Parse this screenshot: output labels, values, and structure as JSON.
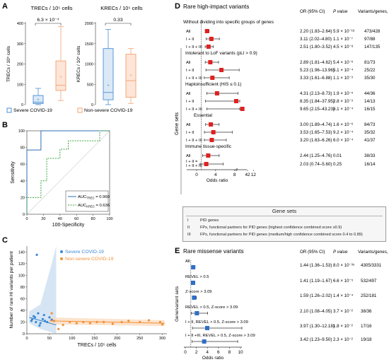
{
  "panels": {
    "A": {
      "letter": "A",
      "left": {
        "title": "TRECs / 10⁵ cells",
        "ylabel": "TRECs / 10⁵ cells",
        "pvalue": "6.3 × 10⁻⁴",
        "ylim": [
          0,
          400
        ],
        "yticks": [
          0,
          100,
          200,
          300,
          400
        ],
        "boxes": [
          {
            "group": "Severe COVID-19",
            "min": 0,
            "q1": 5,
            "median": 12,
            "q3": 45,
            "max": 80,
            "mean": 25
          },
          {
            "group": "Non-severe COVID-19",
            "min": 20,
            "q1": 70,
            "median": 95,
            "q3": 215,
            "max": 385,
            "mean": 135
          }
        ]
      },
      "right": {
        "title": "KRECs / 10⁵ cells",
        "ylabel": "KRECs / 10⁵ cells",
        "pvalue": "0.33",
        "ylim": [
          0,
          2000
        ],
        "yticks": [
          0,
          500,
          1000,
          1500,
          2000
        ],
        "boxes": [
          {
            "group": "Severe COVID-19",
            "min": 0,
            "q1": 120,
            "median": 300,
            "q3": 1380,
            "max": 1850,
            "mean": 480
          },
          {
            "group": "Non-severe COVID-19",
            "min": 30,
            "q1": 180,
            "median": 590,
            "q3": 1240,
            "max": 1380,
            "mean": 720
          }
        ]
      },
      "legend": [
        {
          "label": "Severe COVID-19",
          "color": "#4a8fd1"
        },
        {
          "label": "Non-severe COVID-19",
          "color": "#f2a071"
        }
      ]
    },
    "B": {
      "letter": "B",
      "ylabel": "Sensitivity",
      "xlabel": "100-Specificity",
      "ticks": [
        0,
        20,
        40,
        60,
        80,
        100
      ],
      "legend": [
        {
          "label": "AUC",
          "sub": "TREC",
          "value": "= 0.960",
          "color": "#2c6fb3",
          "style": "solid"
        },
        {
          "label": "AUC",
          "sub": "KREC",
          "value": "= 0.636",
          "color": "#38a53a",
          "style": "dashed"
        }
      ]
    },
    "C": {
      "letter": "C",
      "ylabel": "Number of rare HI variants per patient",
      "xlabel": "TRECs / 10⁵ cells",
      "xticks": [
        0,
        50,
        100,
        150,
        200,
        250,
        300
      ],
      "yticks": [
        0,
        20,
        40,
        60,
        80,
        100,
        120,
        140
      ],
      "legend": [
        {
          "label": "Severe COVID-19",
          "color": "#3b88d4"
        },
        {
          "label": "Non-severe COVID-19",
          "color": "#f29138"
        }
      ]
    },
    "D": {
      "letter": "D",
      "title": "Rare high-impact variants",
      "col_headers": {
        "or": "OR (95% CI)",
        "p": "P value",
        "v": "Variants/genes, #"
      },
      "ylabel": "Gene sets",
      "xlabel": "Odds ratio",
      "xticks": [
        0,
        4,
        8,
        12,
        42
      ],
      "gene_sets_box": {
        "title": "Gene sets",
        "rows": [
          {
            "num": "I",
            "text": "PID genes"
          },
          {
            "num": "II",
            "text": "FPs, functional partners for PID genes (highest confidence combined score ≥0.9)"
          },
          {
            "num": "III",
            "text": "FPs, functional partners for PID genes (medium/high confidence combined score 0.4 to 0.89)"
          }
        ]
      }
    },
    "E": {
      "letter": "E",
      "title": "Rare missense variants",
      "col_headers": {
        "or": "OR (95% CI)",
        "p": "P value",
        "v": "Variants/genes, #"
      },
      "ylabel": "Gene/variant sets",
      "xlabel": "Odds ratio",
      "xticks": [
        0,
        2,
        4,
        6,
        8,
        10
      ]
    }
  },
  "chart_data": [
    {
      "panel": "A-left",
      "type": "box",
      "categories": [
        "Severe COVID-19",
        "Non-severe COVID-19"
      ],
      "ylabel": "TRECs / 10⁵ cells",
      "ylim": [
        0,
        400
      ],
      "annotation": "6.3 × 10⁻⁴"
    },
    {
      "panel": "A-right",
      "type": "box",
      "categories": [
        "Severe COVID-19",
        "Non-severe COVID-19"
      ],
      "ylabel": "KRECs / 10⁵ cells",
      "ylim": [
        0,
        2000
      ],
      "annotation": "0.33"
    },
    {
      "panel": "B",
      "type": "line",
      "xlabel": "100-Specificity",
      "ylabel": "Sensitivity",
      "xlim": [
        0,
        100
      ],
      "ylim": [
        0,
        100
      ],
      "series": [
        {
          "name": "AUC TREC = 0.960",
          "points": [
            [
              0,
              0
            ],
            [
              0,
              77
            ],
            [
              17,
              77
            ],
            [
              17,
              100
            ],
            [
              100,
              100
            ]
          ]
        },
        {
          "name": "AUC KREC = 0.636",
          "points": [
            [
              0,
              0
            ],
            [
              0,
              20
            ],
            [
              17,
              20
            ],
            [
              17,
              40
            ],
            [
              24,
              40
            ],
            [
              24,
              67
            ],
            [
              40,
              67
            ],
            [
              40,
              78
            ],
            [
              50,
              78
            ],
            [
              50,
              88
            ],
            [
              88,
              88
            ],
            [
              88,
              100
            ],
            [
              100,
              100
            ]
          ]
        }
      ]
    },
    {
      "panel": "C",
      "type": "scatter",
      "xlabel": "TRECs / 10⁵ cells",
      "ylabel": "Number of rare HI variants per patient",
      "xlim": [
        0,
        310
      ],
      "ylim": [
        0,
        150
      ],
      "series": [
        {
          "name": "Severe COVID-19",
          "points": [
            [
              10,
              22
            ],
            [
              15,
              30
            ],
            [
              18,
              28
            ],
            [
              22,
              135
            ],
            [
              25,
              35
            ],
            [
              30,
              18
            ],
            [
              35,
              25
            ],
            [
              40,
              22
            ],
            [
              12,
              25
            ],
            [
              45,
              20
            ],
            [
              50,
              28
            ],
            [
              55,
              24
            ],
            [
              60,
              22
            ],
            [
              20,
              20
            ],
            [
              28,
              14
            ],
            [
              38,
              32
            ]
          ],
          "fit": [
            [
              5,
              28
            ],
            [
              65,
              15
            ]
          ]
        },
        {
          "name": "Non-severe COVID-19",
          "points": [
            [
              55,
              35
            ],
            [
              60,
              22
            ],
            [
              70,
              8
            ],
            [
              80,
              15
            ],
            [
              95,
              20
            ],
            [
              110,
              18
            ],
            [
              125,
              20
            ],
            [
              140,
              18
            ],
            [
              155,
              20
            ],
            [
              170,
              20
            ],
            [
              190,
              17
            ],
            [
              210,
              20
            ],
            [
              225,
              22
            ],
            [
              250,
              20
            ],
            [
              270,
              23
            ],
            [
              295,
              20
            ],
            [
              300,
              16
            ]
          ],
          "fit": [
            [
              50,
              22
            ],
            [
              305,
              18
            ]
          ]
        }
      ]
    },
    {
      "panel": "D",
      "type": "forest",
      "xlabel": "Odds ratio",
      "xticks": [
        0,
        4,
        8,
        12,
        42
      ],
      "rows": [
        {
          "kind": "header",
          "label": "Without dividing into specific groups of genes"
        },
        {
          "kind": "row",
          "label": "All",
          "or": 2.2,
          "lo": 1.83,
          "hi": 2.64,
          "text_or": "2.20 (1.83–2.64)",
          "p": "5.9 × 10⁻¹⁸",
          "v": "473/428"
        },
        {
          "kind": "row",
          "label": "I + II",
          "or": 3.11,
          "lo": 2.02,
          "hi": 4.8,
          "text_or": "3.11 (2.02–4.80)",
          "p": "1.1 × 10⁻⁷",
          "v": "97/88"
        },
        {
          "kind": "row",
          "label": "I + II + III",
          "or": 2.51,
          "lo": 1.8,
          "hi": 3.52,
          "text_or": "2.51 (1.80–3.52)",
          "p": "4.5 × 10⁻⁸",
          "v": "147/135"
        },
        {
          "kind": "header",
          "label": "Intolerant to LoF variants (pLI > 0.9)"
        },
        {
          "kind": "row",
          "label": "All",
          "or": 2.89,
          "lo": 1.81,
          "hi": 4.62,
          "text_or": "2.89 (1.81–4.62)",
          "p": "5.4 × 10⁻⁶",
          "v": "81/73"
        },
        {
          "kind": "row",
          "label": "I + II",
          "or": 5.23,
          "lo": 1.96,
          "hi": 13.96,
          "text_or": "5.23 (1.96–13.96)",
          "p": "5.1 × 10⁻⁴",
          "v": "25/22"
        },
        {
          "kind": "row",
          "label": "I + II + III",
          "or": 3.33,
          "lo": 1.61,
          "hi": 6.88,
          "text_or": "3.33 (1.61–6.88)",
          "p": "1.1 × 10⁻³",
          "v": "35/30"
        },
        {
          "kind": "header",
          "label": "Haploinsufficient (HIS ≤ 0.1)"
        },
        {
          "kind": "row",
          "label": "All",
          "or": 4.31,
          "lo": 2.13,
          "hi": 8.73,
          "text_or": "4.31 (2.13–8.73)",
          "p": "1.9 × 10⁻⁵",
          "v": "44/36"
        },
        {
          "kind": "row",
          "label": "I + II",
          "or": 8.35,
          "lo": 1.84,
          "hi": 37.95,
          "text_or": "8.35 (1.84–37.95)",
          "p": "2.8 × 10⁻³",
          "v": "14/13"
        },
        {
          "kind": "row",
          "label": "I + II + III",
          "or": 9.65,
          "lo": 2.15,
          "hi": 43.23,
          "text_or": "9.65 (2.15–43.23)",
          "p": "8.1 × 10⁻⁴",
          "v": "16/15"
        },
        {
          "kind": "header",
          "label": "Essential"
        },
        {
          "kind": "row",
          "label": "All",
          "or": 3.0,
          "lo": 1.89,
          "hi": 4.74,
          "text_or": "3.00 (1.89–4.74)",
          "p": "1.6 × 10⁻⁶",
          "v": "84/73"
        },
        {
          "kind": "row",
          "label": "I + II",
          "or": 3.53,
          "lo": 1.65,
          "hi": 7.53,
          "text_or": "3.53 (1.65–7.53)",
          "p": "9.2 × 10⁻⁴",
          "v": "35/32"
        },
        {
          "kind": "row",
          "label": "I + II + III",
          "or": 3.2,
          "lo": 1.63,
          "hi": 6.26,
          "text_or": "3.20 (1.63–6.26)",
          "p": "6.0 × 10⁻⁴",
          "v": "41/37"
        },
        {
          "kind": "header",
          "label": "Immune tissue-specific"
        },
        {
          "kind": "row",
          "label": "All",
          "or": 2.44,
          "lo": 1.25,
          "hi": 4.76,
          "text_or": "2.44 (1.25–4.76)",
          "p": "0.01",
          "v": "38/33"
        },
        {
          "kind": "row",
          "label": "I + II = I + II + III",
          "or": 2.03,
          "lo": 0.74,
          "hi": 5.6,
          "text_or": "2.03 (0.74–5.60)",
          "p": "0.25",
          "v": "16/14"
        }
      ]
    },
    {
      "panel": "E",
      "type": "forest",
      "xlabel": "Odds ratio",
      "xticks": [
        0,
        2,
        4,
        6,
        8,
        10
      ],
      "rows": [
        {
          "label": "All",
          "or": 1.44,
          "lo": 1.36,
          "hi": 1.53,
          "text_or": "1.44 (1.36–1.53)",
          "p": "8.0 × 10⁻³⁵",
          "v": "4305/3331"
        },
        {
          "label": "REVEL > 0.5",
          "or": 1.41,
          "lo": 1.19,
          "hi": 1.67,
          "text_or": "1.41 (1.19–1.67)",
          "p": "6.6 × 10⁻⁵",
          "v": "532/497"
        },
        {
          "label": "Z-score > 3.09",
          "or": 1.59,
          "lo": 1.26,
          "hi": 2.02,
          "text_or": "1.59 (1.26–2.02)",
          "p": "1.4 × 10⁻⁴",
          "v": "252/181"
        },
        {
          "label": "REVEL > 0.5, Z-score > 3.09",
          "or": 2.1,
          "lo": 1.08,
          "hi": 4.05,
          "text_or": "2.10 (1.08–4.05)",
          "p": "3.7 × 10⁻²",
          "v": "38/36"
        },
        {
          "label": "I + II, REVEL > 0.5, Z-score > 3.09",
          "or": 3.97,
          "lo": 1.3,
          "hi": 12.18,
          "text_or": "3.97 (1.30–12.18)",
          "p": "1.8 × 10⁻²",
          "v": "17/16"
        },
        {
          "label": "I + II +III, REVEL > 0.5, Z-score > 3.09",
          "or": 3.42,
          "lo": 1.23,
          "hi": 9.5,
          "text_or": "3.42 (1.23–9.50)",
          "p": "2.3 × 10⁻²",
          "v": "19/18"
        }
      ]
    }
  ]
}
